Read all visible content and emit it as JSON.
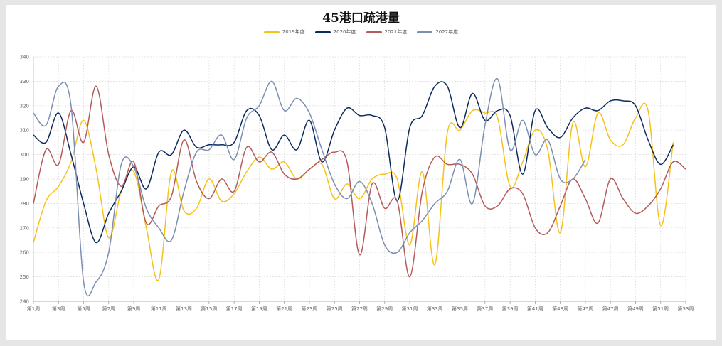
{
  "chart_data": {
    "type": "line",
    "title": "45港口疏港量",
    "xlabel": "",
    "ylabel": "",
    "ylim": [
      240,
      340
    ],
    "yticks": [
      240,
      250,
      260,
      270,
      280,
      290,
      300,
      310,
      320,
      330,
      340
    ],
    "grid": true,
    "legend_position": "top",
    "x_labels": [
      "第1周",
      "第3周",
      "第5周",
      "第7周",
      "第9周",
      "第11周",
      "第13周",
      "第15周",
      "第17周",
      "第19周",
      "第21周",
      "第23周",
      "第25周",
      "第27周",
      "第29周",
      "第31周",
      "第33周",
      "第35周",
      "第37周",
      "第39周",
      "第41周",
      "第43周",
      "第45周",
      "第47周",
      "第49周",
      "第51周",
      "第53周"
    ],
    "x_labels_weeks": [
      1,
      3,
      5,
      7,
      9,
      11,
      13,
      15,
      17,
      19,
      21,
      23,
      25,
      27,
      29,
      31,
      33,
      35,
      37,
      39,
      41,
      43,
      45,
      47,
      49,
      51,
      53
    ],
    "series": [
      {
        "name": "2019年度",
        "color": "#f5c21a",
        "x": [
          1,
          2,
          3,
          4,
          5,
          6,
          7,
          8,
          9,
          10,
          11,
          12,
          13,
          14,
          15,
          16,
          17,
          18,
          19,
          20,
          21,
          22,
          23,
          24,
          25,
          26,
          27,
          28,
          29,
          30,
          31,
          32,
          33,
          34,
          35,
          36,
          37,
          38,
          39,
          40,
          41,
          42,
          43,
          44,
          45,
          46,
          47,
          48,
          49,
          50,
          51,
          52
        ],
        "y": [
          264,
          281,
          287,
          297,
          314,
          294,
          266,
          285,
          293,
          270,
          249,
          293,
          277,
          278,
          290,
          281,
          284,
          293,
          299,
          294,
          297,
          290,
          294,
          296,
          282,
          288,
          282,
          290,
          292,
          290,
          263,
          293,
          255,
          309,
          310,
          318,
          317,
          315,
          287,
          297,
          310,
          302,
          268,
          313,
          295,
          317,
          306,
          304,
          315,
          318,
          271,
          305
        ]
      },
      {
        "name": "2020年度",
        "color": "#0c2a5e",
        "x": [
          1,
          2,
          3,
          4,
          5,
          6,
          7,
          8,
          9,
          10,
          11,
          12,
          13,
          14,
          15,
          16,
          17,
          18,
          19,
          20,
          21,
          22,
          23,
          24,
          25,
          26,
          27,
          28,
          29,
          30,
          31,
          32,
          33,
          34,
          35,
          36,
          37,
          38,
          39,
          40,
          41,
          42,
          43,
          44,
          45,
          46,
          47,
          48,
          49,
          50,
          51,
          52
        ],
        "y": [
          308,
          305,
          317,
          300,
          280,
          264,
          276,
          285,
          295,
          286,
          301,
          300,
          310,
          303,
          304,
          304,
          305,
          318,
          316,
          302,
          308,
          302,
          314,
          297,
          310,
          319,
          316,
          316,
          311,
          281,
          311,
          316,
          328,
          328,
          311,
          325,
          314,
          318,
          316,
          292,
          318,
          311,
          307,
          315,
          319,
          318,
          322,
          322,
          320,
          306,
          296,
          304
        ]
      },
      {
        "name": "2021年度",
        "color": "#b55a5a",
        "x": [
          1,
          2,
          3,
          4,
          5,
          6,
          7,
          8,
          9,
          10,
          11,
          12,
          13,
          14,
          15,
          16,
          17,
          18,
          19,
          20,
          21,
          22,
          23,
          24,
          25,
          26,
          27,
          28,
          29,
          30,
          31,
          32,
          33,
          34,
          35,
          36,
          37,
          38,
          39,
          40,
          41,
          42,
          43,
          44,
          45,
          46,
          47,
          48,
          49,
          50,
          51,
          52,
          53
        ],
        "y": [
          280,
          302,
          296,
          318,
          305,
          328,
          300,
          287,
          297,
          272,
          279,
          283,
          306,
          289,
          282,
          290,
          285,
          303,
          297,
          301,
          292,
          290,
          294,
          298,
          301,
          297,
          259,
          288,
          278,
          281,
          250,
          285,
          299,
          296,
          296,
          292,
          279,
          279,
          286,
          284,
          270,
          268,
          279,
          290,
          282,
          272,
          290,
          282,
          276,
          279,
          286,
          297,
          294
        ]
      },
      {
        "name": "2022年度",
        "color": "#7b8fb3",
        "x": [
          1,
          2,
          3,
          4,
          5,
          6,
          7,
          8,
          9,
          10,
          11,
          12,
          13,
          14,
          15,
          16,
          17,
          18,
          19,
          20,
          21,
          22,
          23,
          24,
          25,
          26,
          27,
          28,
          29,
          30,
          31,
          32,
          33,
          34,
          35,
          36,
          37,
          38,
          39,
          40,
          41,
          42,
          43,
          44,
          45
        ],
        "y": [
          317,
          312,
          328,
          320,
          248,
          248,
          260,
          296,
          295,
          278,
          270,
          265,
          285,
          301,
          302,
          308,
          298,
          315,
          320,
          330,
          318,
          323,
          317,
          302,
          288,
          282,
          289,
          280,
          263,
          260,
          268,
          273,
          280,
          285,
          298,
          280,
          312,
          331,
          302,
          314,
          300,
          306,
          290,
          290,
          298
        ]
      }
    ]
  }
}
